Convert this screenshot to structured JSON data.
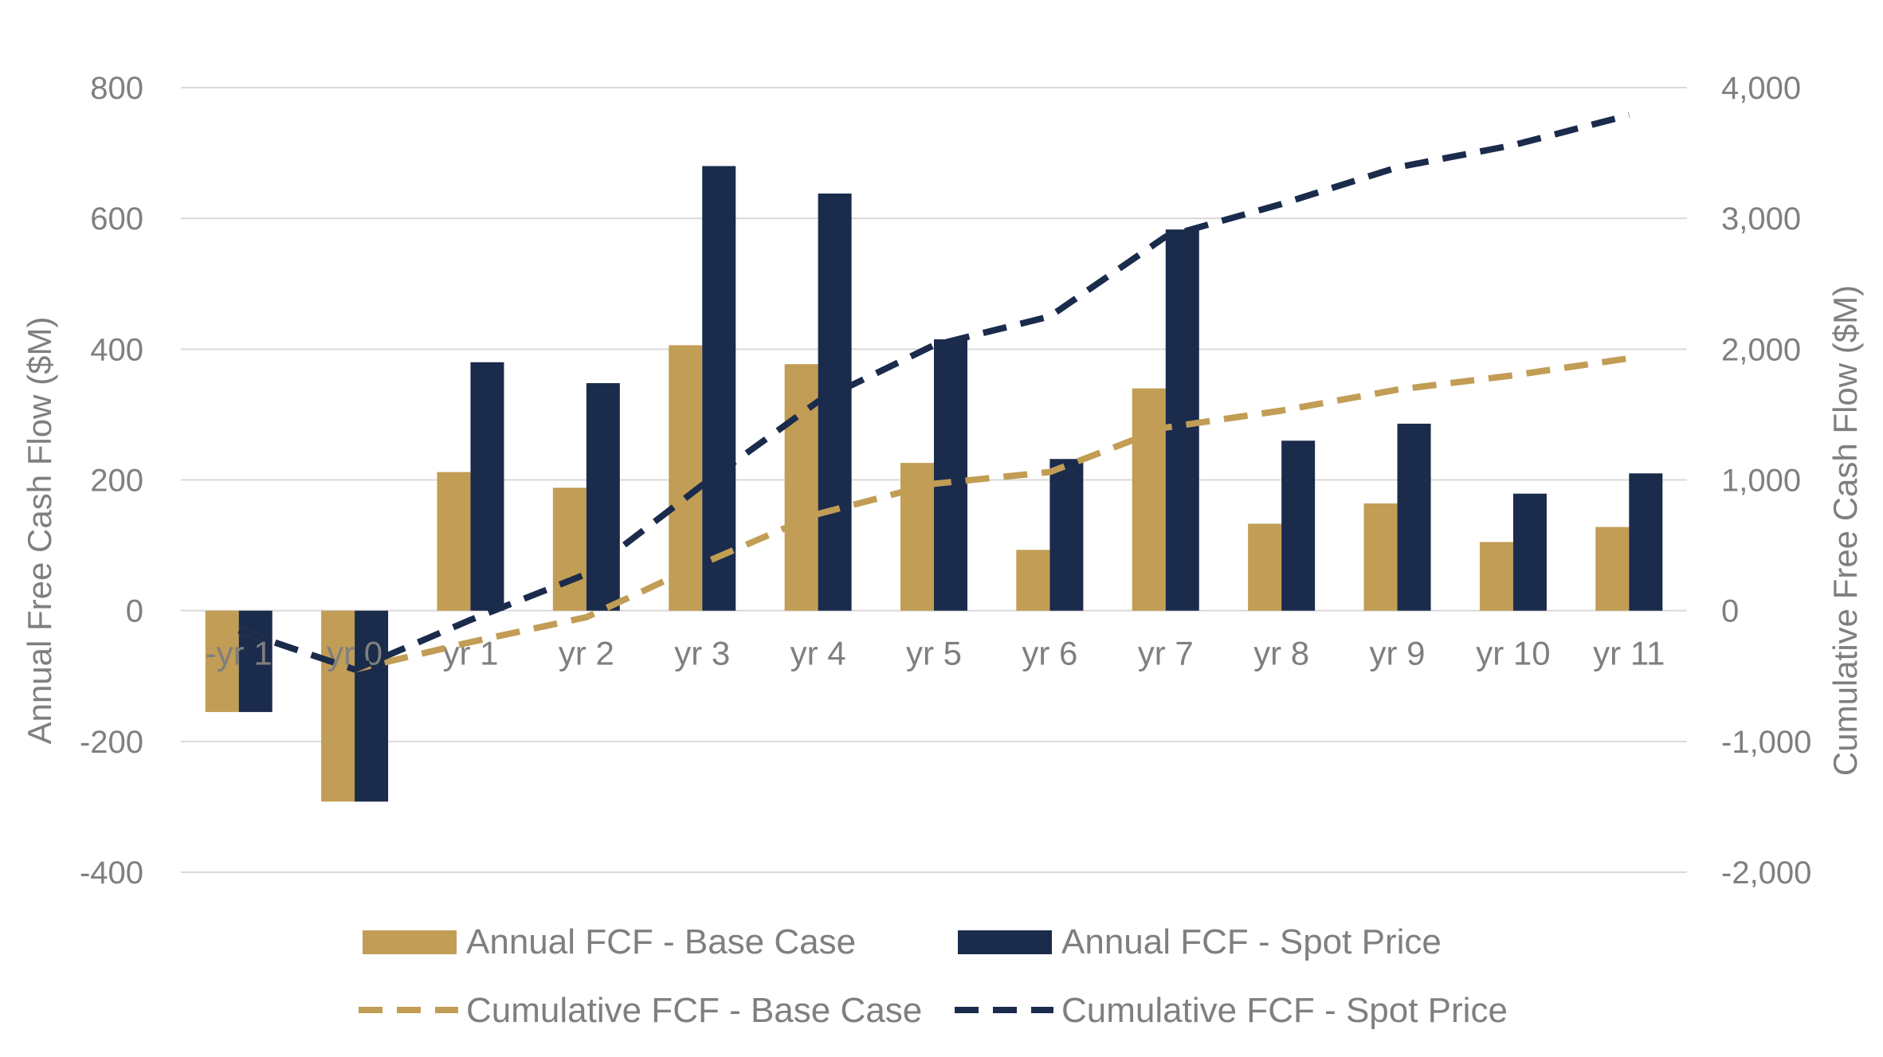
{
  "chart_data": {
    "type": "bar",
    "categories": [
      "-yr 1",
      "yr 0",
      "yr 1",
      "yr 2",
      "yr 3",
      "yr 4",
      "yr 5",
      "yr 6",
      "yr 7",
      "yr 8",
      "yr 9",
      "yr 10",
      "yr 11"
    ],
    "ylabel": "Annual Free Cash Flow ($M)",
    "y2label": "Cumulative Free  Cash Flow ($M)",
    "ylim": [
      -400,
      800
    ],
    "y2lim": [
      -2000,
      4000
    ],
    "yticks": [
      "800",
      "600",
      "400",
      "200",
      "0",
      "-200",
      "-400"
    ],
    "y2ticks": [
      "4,000",
      "3,000",
      "2,000",
      "1,000",
      "0",
      "-1,000",
      "-2,000"
    ],
    "grid": true,
    "legend_position": "bottom",
    "series": [
      {
        "name": "Annual FCF - Base Case",
        "kind": "bar",
        "axis": "left",
        "color": "#C19D55",
        "values": [
          -155,
          -292,
          212,
          188,
          406,
          377,
          226,
          93,
          340,
          133,
          164,
          105,
          128
        ]
      },
      {
        "name": "Annual FCF - Spot Price",
        "kind": "bar",
        "axis": "left",
        "color": "#1A2B4C",
        "values": [
          -155,
          -292,
          380,
          348,
          680,
          638,
          415,
          232,
          583,
          260,
          286,
          179,
          210
        ]
      },
      {
        "name": "Cumulative FCF - Base Case",
        "kind": "line",
        "dash": true,
        "axis": "right",
        "color": "#C19D55",
        "values": [
          -150,
          -450,
          -240,
          -50,
          360,
          740,
          970,
          1060,
          1400,
          1530,
          1690,
          1800,
          1930
        ]
      },
      {
        "name": "Cumulative FCF - Spot Price",
        "kind": "line",
        "dash": true,
        "axis": "right",
        "color": "#1A2B4C",
        "values": [
          -150,
          -450,
          -70,
          280,
          960,
          1600,
          2030,
          2250,
          2860,
          3110,
          3390,
          3560,
          3790
        ]
      }
    ]
  }
}
